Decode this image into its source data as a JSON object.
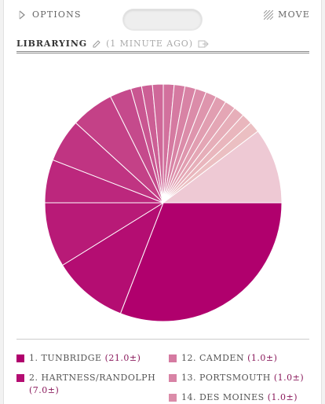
{
  "header": {
    "options_label": "OPTIONS",
    "move_label": "MOVE",
    "icons": {
      "options": "chevron-right-icon",
      "move": "move-hatch-icon",
      "edit": "pencil-icon",
      "export": "export-icon"
    }
  },
  "widget": {
    "title": "LIBRARYING",
    "updated": "(1 MINUTE AGO)"
  },
  "colors": {
    "accent": "#b0006d",
    "value_text": "#8a1a5c",
    "slice_colors": [
      "#b0006d",
      "#b40d72",
      "#b81a77",
      "#bc277d",
      "#c03482",
      "#c44187",
      "#c54a8c",
      "#c95691",
      "#cc5f95",
      "#cf6899",
      "#d2719d",
      "#d57aa1",
      "#d883a5",
      "#db8ca9",
      "#de95ad",
      "#e19eb1",
      "#e4a6b5",
      "#e6aeb9",
      "#e9b6bd",
      "#ebbfc2",
      "#eec9d4"
    ]
  },
  "chart_data": {
    "type": "pie",
    "title": "LIBRARYING",
    "slices": [
      {
        "label": "TUNBRIDGE",
        "value": 21.0
      },
      {
        "label": "HARTNESS/RANDOLPH",
        "value": 7.0
      },
      {
        "label": "",
        "value": 6.0
      },
      {
        "label": "",
        "value": 4.0
      },
      {
        "label": "",
        "value": 4.0
      },
      {
        "label": "",
        "value": 4.0
      },
      {
        "label": "",
        "value": 2.0
      },
      {
        "label": "",
        "value": 1.0
      },
      {
        "label": "",
        "value": 1.0
      },
      {
        "label": "",
        "value": 1.0
      },
      {
        "label": "",
        "value": 1.0
      },
      {
        "label": "CAMDEN",
        "value": 1.0
      },
      {
        "label": "PORTSMOUTH",
        "value": 1.0
      },
      {
        "label": "DES MOINES",
        "value": 1.0
      },
      {
        "label": "",
        "value": 1.0
      },
      {
        "label": "",
        "value": 1.0
      },
      {
        "label": "",
        "value": 1.0
      },
      {
        "label": "",
        "value": 1.0
      },
      {
        "label": "",
        "value": 1.0
      },
      {
        "label": "",
        "value": 1.0
      },
      {
        "label": "",
        "value": 7.0
      }
    ],
    "legend_visible": [
      {
        "rank": "1.",
        "name": "TUNBRIDGE",
        "value": "(21.0±)",
        "slice": 0
      },
      {
        "rank": "2.",
        "name": "HARTNESS/RANDOLPH",
        "value": "(7.0±)",
        "slice": 1
      },
      {
        "rank": "12.",
        "name": "CAMDEN",
        "value": "(1.0±)",
        "slice": 11
      },
      {
        "rank": "13.",
        "name": "PORTSMOUTH",
        "value": "(1.0±)",
        "slice": 12
      },
      {
        "rank": "14.",
        "name": "DES MOINES",
        "value": "(1.0±)",
        "slice": 13
      }
    ]
  }
}
